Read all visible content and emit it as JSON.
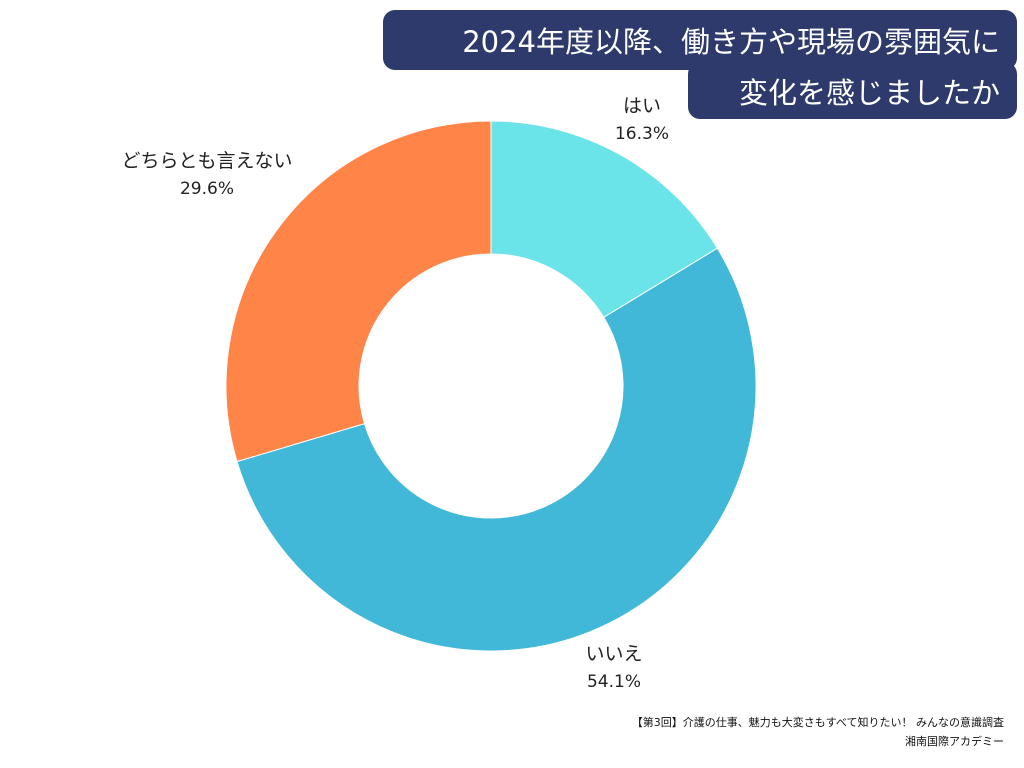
{
  "chart_data": {
    "type": "pie",
    "donut": true,
    "title": [
      "2024年度以降、働き方や現場の雰囲気に",
      "変化を感じましたか"
    ],
    "slices": [
      {
        "label": "はい",
        "value": 16.3,
        "value_label": "16.3%",
        "color": "#6ae4e8"
      },
      {
        "label": "いいえ",
        "value": 54.1,
        "value_label": "54.1%",
        "color": "#42b8d8"
      },
      {
        "label": "どちらとも言えない",
        "value": 29.6,
        "value_label": "29.6%",
        "color": "#ff8448"
      }
    ],
    "start_angle_deg": 0,
    "direction": "clockwise"
  },
  "source": {
    "line1": "【第3回】介護の仕事、魅力も大変さもすべて知りたい！ みんなの意識調査",
    "line2": "湘南国際アカデミー"
  },
  "colors": {
    "title_background": "#2d3a6b",
    "title_text": "#ffffff"
  }
}
